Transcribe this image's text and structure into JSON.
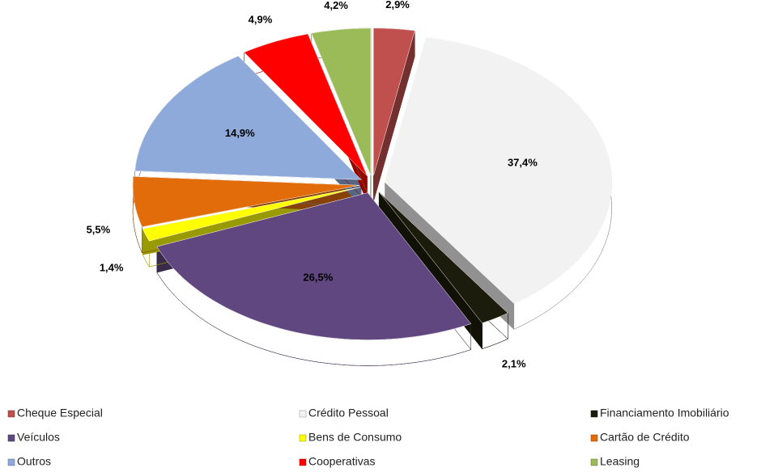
{
  "chart_data": {
    "type": "pie",
    "categories": [
      "Cheque Especial",
      "Crédito Pessoal",
      "Financiamento Imobiliário",
      "Veículos",
      "Bens de Consumo",
      "Cartão de Crédito",
      "Outros",
      "Cooperativas",
      "Leasing"
    ],
    "values": [
      2.9,
      37.4,
      2.1,
      26.5,
      1.4,
      5.5,
      14.9,
      4.9,
      4.2
    ],
    "value_labels": [
      "2,9%",
      "37,4%",
      "2,1%",
      "26,5%",
      "1,4%",
      "5,5%",
      "14,9%",
      "4,9%",
      "4,2%"
    ],
    "colors": [
      "#c0504d",
      "#f2f2f2",
      "#1c1c0c",
      "#60477f",
      "#ffff00",
      "#e36c0a",
      "#8eaadb",
      "#ff0000",
      "#9bbb59"
    ],
    "legend": "bottom"
  }
}
